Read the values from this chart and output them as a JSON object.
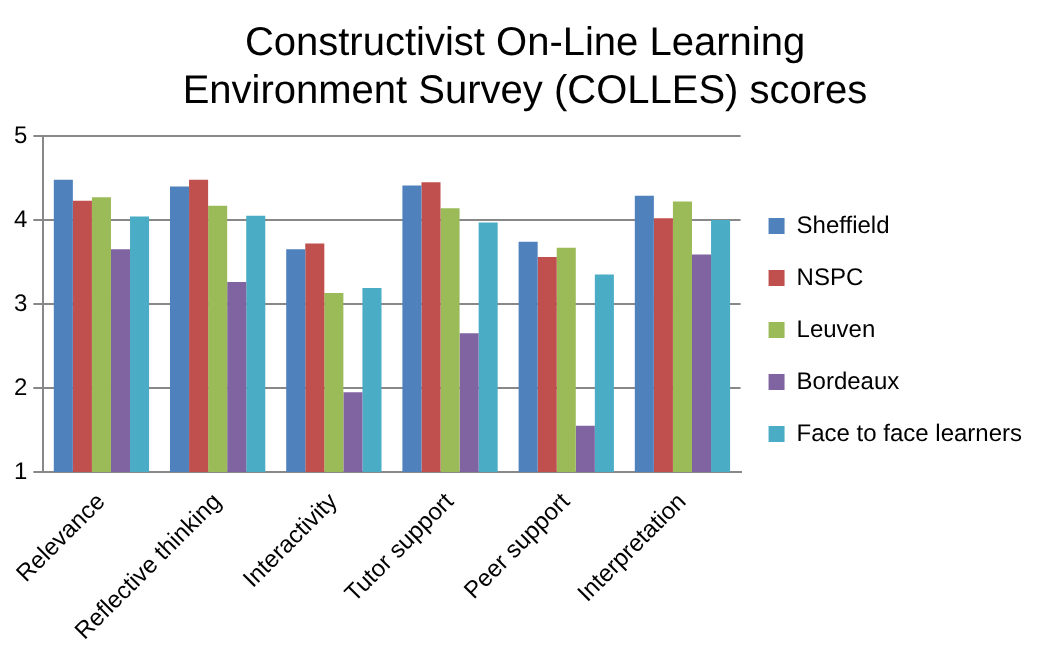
{
  "chart_data": {
    "type": "bar",
    "title": "Constructivist On-Line Learning Environment Survey (COLLES) scores",
    "categories": [
      "Relevance",
      "Reflective thinking",
      "Interactivity",
      "Tutor support",
      "Peer support",
      "Interpretation"
    ],
    "series": [
      {
        "name": "Sheffield",
        "color": "#4f81bd",
        "values": [
          4.48,
          4.4,
          3.65,
          4.41,
          3.74,
          4.29
        ]
      },
      {
        "name": "NSPC",
        "color": "#c0504d",
        "values": [
          4.23,
          4.48,
          3.72,
          4.45,
          3.56,
          4.02
        ]
      },
      {
        "name": "Leuven",
        "color": "#9bbb59",
        "values": [
          4.27,
          4.17,
          3.13,
          4.14,
          3.67,
          4.22
        ]
      },
      {
        "name": "Bordeaux",
        "color": "#8064a2",
        "values": [
          3.65,
          3.26,
          1.95,
          2.65,
          1.55,
          3.59
        ]
      },
      {
        "name": "Face to face learners",
        "color": "#4bacc6",
        "values": [
          4.04,
          4.05,
          3.19,
          3.97,
          3.35,
          4.0
        ]
      }
    ],
    "ylim": [
      1,
      5
    ],
    "yticks": [
      1,
      2,
      3,
      4,
      5
    ],
    "grid": "y",
    "legend": "right"
  }
}
